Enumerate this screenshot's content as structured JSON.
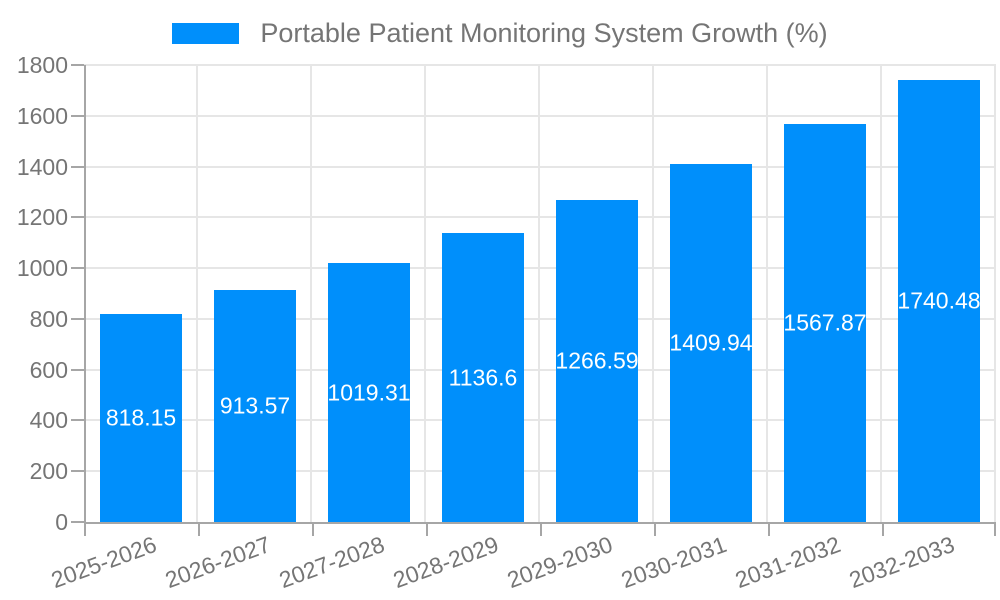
{
  "chart_data": {
    "type": "bar",
    "title": "Portable Patient Monitoring System Growth (%)",
    "categories": [
      "2025-2026",
      "2026-2027",
      "2027-2028",
      "2028-2029",
      "2029-2030",
      "2030-2031",
      "2031-2032",
      "2032-2033"
    ],
    "values": [
      818.15,
      913.57,
      1019.31,
      1136.6,
      1266.59,
      1409.94,
      1567.87,
      1740.48
    ],
    "value_labels": [
      "818.15",
      "913.57",
      "1019.31",
      "1136.6",
      "1266.59",
      "1409.94",
      "1567.87",
      "1740.48"
    ],
    "xlabel": "",
    "ylabel": "",
    "ylim": [
      0,
      1800
    ],
    "y_ticks": [
      0,
      200,
      400,
      600,
      800,
      1000,
      1200,
      1400,
      1600,
      1800
    ],
    "grid": true,
    "legend_position": "top-center",
    "colors": {
      "bar": "#008FFB",
      "axis_text": "#757575",
      "value_text": "#FFFFFF",
      "gridline": "#E6E6E6",
      "axis_line": "#A6A6A6"
    }
  }
}
